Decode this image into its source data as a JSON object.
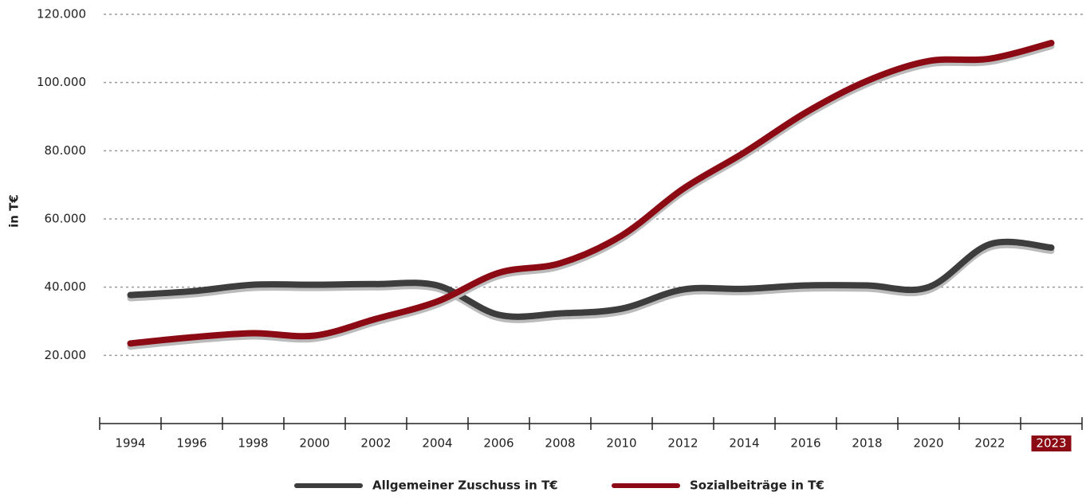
{
  "chart_data": {
    "type": "line",
    "y_label": "in T€",
    "categories": [
      "1994",
      "1996",
      "1998",
      "2000",
      "2002",
      "2004",
      "2006",
      "2008",
      "2010",
      "2012",
      "2014",
      "2016",
      "2018",
      "2020",
      "2022",
      "2023"
    ],
    "series": [
      {
        "name": "Allgemeiner Zuschuss in T€",
        "color": "#3d3d3d",
        "values": [
          37700,
          38800,
          40700,
          40700,
          40900,
          40500,
          31900,
          32300,
          33700,
          39300,
          39500,
          40500,
          40500,
          40000,
          52600,
          51600
        ]
      },
      {
        "name": "Sozialbeiträge in T€",
        "color": "#8b0a14",
        "values": [
          23500,
          25300,
          26500,
          25800,
          30700,
          35800,
          44200,
          47000,
          55100,
          68800,
          79500,
          91200,
          100500,
          106300,
          107000,
          111600
        ]
      }
    ],
    "ylim": [
      0,
      120000
    ],
    "yticks": [
      {
        "value": 20000,
        "label": "20.000"
      },
      {
        "value": 40000,
        "label": "40.000"
      },
      {
        "value": 60000,
        "label": "60.000"
      },
      {
        "value": 80000,
        "label": "80.000"
      },
      {
        "value": 100000,
        "label": "100.000"
      },
      {
        "value": 120000,
        "label": "120.000"
      }
    ],
    "grid": true,
    "legend": "bottom"
  }
}
